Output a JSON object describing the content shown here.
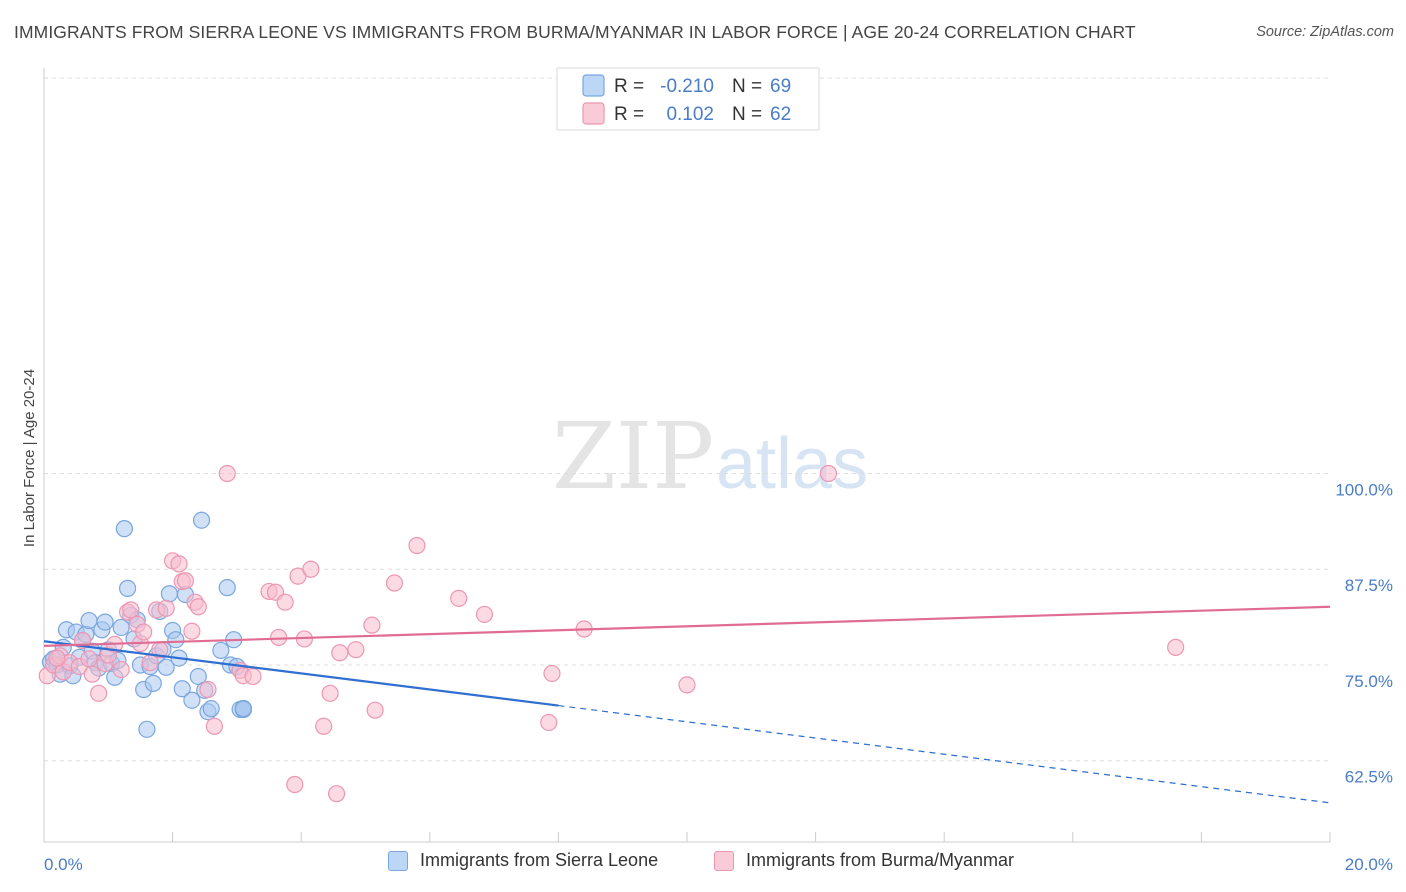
{
  "title": "IMMIGRANTS FROM SIERRA LEONE VS IMMIGRANTS FROM BURMA/MYANMAR IN LABOR FORCE | AGE 20-24 CORRELATION CHART",
  "source": "Source: ZipAtlas.com",
  "watermark": {
    "zip": "ZIP",
    "atlas": "atlas"
  },
  "colors": {
    "blue_fill": "#a9c8f0",
    "blue_stroke": "#7aa6de",
    "blue_line": "#2f6fd1",
    "pink_fill": "#f7bccd",
    "pink_stroke": "#ec97b2",
    "pink_line": "#e06c94",
    "tick_text": "#4a7cc7",
    "grid": "#dddddd"
  },
  "legend": {
    "rows": [
      {
        "r_label": "R = ",
        "r_value": "-0.210",
        "n_label": "N = ",
        "n_value": "69",
        "color": "blue"
      },
      {
        "r_label": "R = ",
        "r_value": " 0.102",
        "n_label": "N = ",
        "n_value": "62",
        "color": "pink"
      }
    ]
  },
  "chart_data": {
    "type": "scatter",
    "title": "IMMIGRANTS FROM SIERRA LEONE VS IMMIGRANTS FROM BURMA/MYANMAR IN LABOR FORCE | AGE 20-24 CORRELATION CHART",
    "xlabel": "",
    "ylabel": "In Labor Force | Age 20-24",
    "xlim": [
      0,
      20
    ],
    "ylim": [
      51.5,
      102
    ],
    "x_tick_labels": [
      "0.0%",
      "20.0%"
    ],
    "y_ticks": [
      62.5,
      75.0,
      87.5,
      100.0
    ],
    "y_tick_labels": [
      "62.5%",
      "75.0%",
      "87.5%",
      "100.0%"
    ],
    "grid": "horizontal dashed",
    "legend_position": "top-center",
    "series": [
      {
        "name": "Immigrants from Sierra Leone",
        "color": "#a9c8f0",
        "trend": {
          "x0": 0.0,
          "y0": 78.1,
          "x1": 8.0,
          "y1": 69.7,
          "dashed_to_x": 20.0,
          "dashed_to_y": 57.0
        },
        "points": [
          [
            0.1,
            75.4
          ],
          [
            0.15,
            75.8
          ],
          [
            0.2,
            75.0
          ],
          [
            0.25,
            73.8
          ],
          [
            0.3,
            77.3
          ],
          [
            0.35,
            79.6
          ],
          [
            0.4,
            74.9
          ],
          [
            0.45,
            73.6
          ],
          [
            0.5,
            79.3
          ],
          [
            0.55,
            76.0
          ],
          [
            0.6,
            78.2
          ],
          [
            0.65,
            79.0
          ],
          [
            0.7,
            80.8
          ],
          [
            0.75,
            76.8
          ],
          [
            0.8,
            75.3
          ],
          [
            0.85,
            74.6
          ],
          [
            0.9,
            79.6
          ],
          [
            0.95,
            80.6
          ],
          [
            1.0,
            77.0
          ],
          [
            1.05,
            75.2
          ],
          [
            1.1,
            73.4
          ],
          [
            1.15,
            75.6
          ],
          [
            1.2,
            79.9
          ],
          [
            1.25,
            92.8
          ],
          [
            1.3,
            85.0
          ],
          [
            1.35,
            81.5
          ],
          [
            1.4,
            78.4
          ],
          [
            1.45,
            80.9
          ],
          [
            1.5,
            75.0
          ],
          [
            1.55,
            71.8
          ],
          [
            1.6,
            66.6
          ],
          [
            1.65,
            74.8
          ],
          [
            1.7,
            72.6
          ],
          [
            1.75,
            76.2
          ],
          [
            1.8,
            82.0
          ],
          [
            1.85,
            77.0
          ],
          [
            1.9,
            74.7
          ],
          [
            1.95,
            84.3
          ],
          [
            2.0,
            79.5
          ],
          [
            2.05,
            78.3
          ],
          [
            2.1,
            75.9
          ],
          [
            2.15,
            71.9
          ],
          [
            2.2,
            84.2
          ],
          [
            2.3,
            70.4
          ],
          [
            2.4,
            73.5
          ],
          [
            2.45,
            93.9
          ],
          [
            2.5,
            71.7
          ],
          [
            2.55,
            68.9
          ],
          [
            2.6,
            69.3
          ],
          [
            2.75,
            76.9
          ],
          [
            2.85,
            85.1
          ],
          [
            2.95,
            78.3
          ],
          [
            2.9,
            75.0
          ],
          [
            3.0,
            74.8
          ],
          [
            3.05,
            69.2
          ],
          [
            3.1,
            69.3
          ],
          [
            3.1,
            69.2
          ],
          [
            3.1,
            69.3
          ],
          [
            3.1,
            69.2
          ],
          [
            3.1,
            69.3
          ],
          [
            3.1,
            69.2
          ],
          [
            3.1,
            69.3
          ],
          [
            3.1,
            69.2
          ],
          [
            3.1,
            69.3
          ],
          [
            3.1,
            69.2
          ],
          [
            3.1,
            69.2
          ],
          [
            3.1,
            69.3
          ],
          [
            3.1,
            69.2
          ],
          [
            3.1,
            69.3
          ]
        ]
      },
      {
        "name": "Immigrants from Burma/Myanmar",
        "color": "#f7bccd",
        "trend": {
          "x0": 0.0,
          "y0": 77.5,
          "x1": 20.0,
          "y1": 82.6
        },
        "points": [
          [
            0.05,
            73.6
          ],
          [
            0.15,
            75.0
          ],
          [
            0.25,
            76.2
          ],
          [
            0.3,
            74.1
          ],
          [
            0.4,
            75.3
          ],
          [
            0.55,
            74.8
          ],
          [
            0.6,
            78.2
          ],
          [
            0.7,
            75.8
          ],
          [
            0.75,
            73.8
          ],
          [
            0.85,
            71.3
          ],
          [
            0.95,
            75.2
          ],
          [
            1.0,
            76.3
          ],
          [
            1.1,
            77.7
          ],
          [
            1.2,
            74.4
          ],
          [
            1.3,
            81.9
          ],
          [
            1.35,
            82.2
          ],
          [
            1.45,
            80.3
          ],
          [
            1.5,
            77.8
          ],
          [
            1.55,
            79.3
          ],
          [
            1.65,
            75.3
          ],
          [
            1.75,
            82.2
          ],
          [
            1.8,
            77.0
          ],
          [
            1.9,
            82.4
          ],
          [
            2.0,
            88.6
          ],
          [
            2.1,
            88.2
          ],
          [
            2.15,
            85.9
          ],
          [
            2.2,
            86.0
          ],
          [
            2.3,
            79.4
          ],
          [
            2.35,
            83.2
          ],
          [
            2.4,
            82.6
          ],
          [
            2.55,
            71.8
          ],
          [
            2.65,
            67.0
          ],
          [
            2.85,
            100.0
          ],
          [
            3.05,
            74.3
          ],
          [
            3.1,
            73.6
          ],
          [
            3.25,
            73.5
          ],
          [
            3.5,
            84.6
          ],
          [
            3.6,
            84.5
          ],
          [
            3.65,
            78.6
          ],
          [
            3.75,
            83.2
          ],
          [
            3.9,
            59.4
          ],
          [
            3.95,
            86.6
          ],
          [
            4.05,
            78.4
          ],
          [
            4.15,
            87.5
          ],
          [
            4.35,
            67.0
          ],
          [
            4.45,
            71.3
          ],
          [
            4.55,
            58.2
          ],
          [
            4.6,
            76.6
          ],
          [
            4.85,
            77.0
          ],
          [
            5.1,
            80.2
          ],
          [
            5.15,
            69.1
          ],
          [
            5.45,
            85.7
          ],
          [
            5.8,
            90.6
          ],
          [
            6.45,
            83.7
          ],
          [
            6.85,
            81.6
          ],
          [
            7.85,
            67.5
          ],
          [
            7.9,
            73.9
          ],
          [
            8.4,
            79.7
          ],
          [
            10.0,
            72.4
          ],
          [
            12.2,
            100.0
          ],
          [
            17.6,
            77.3
          ],
          [
            0.2,
            75.9
          ]
        ]
      }
    ]
  },
  "bottom_legend": [
    {
      "label": "Immigrants from Sierra Leone",
      "color": "blue"
    },
    {
      "label": "Immigrants from Burma/Myanmar",
      "color": "pink"
    }
  ]
}
